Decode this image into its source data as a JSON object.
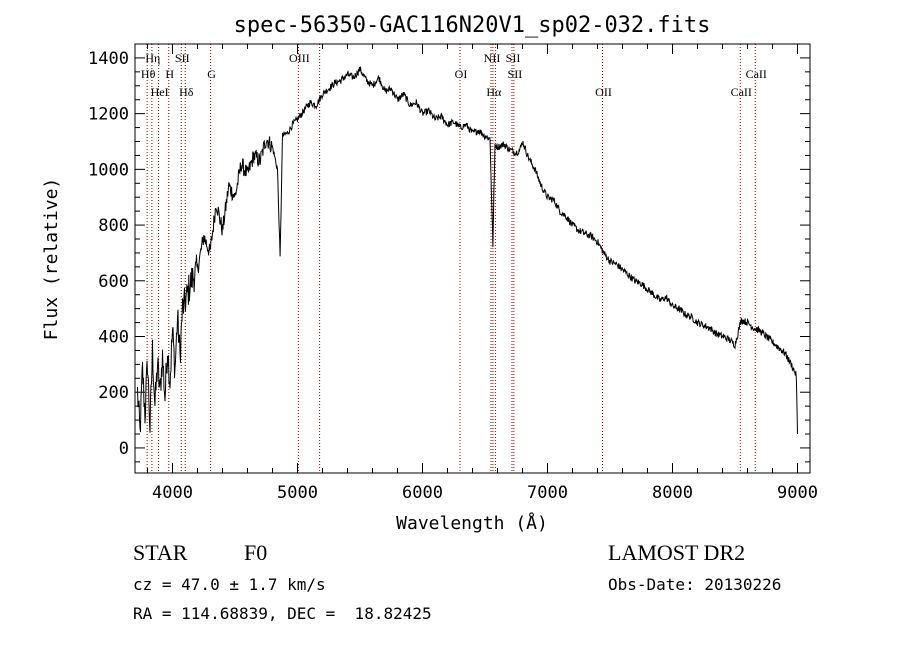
{
  "chart_data": {
    "type": "line",
    "title": "spec-56350-GAC116N20V1_sp02-032.fits",
    "xlabel": "Wavelength (Å)",
    "ylabel": "Flux (relative)",
    "xlim": [
      3700,
      9100
    ],
    "ylim": [
      -90,
      1450
    ],
    "xticks": [
      4000,
      5000,
      6000,
      7000,
      8000,
      9000
    ],
    "yticks": [
      0,
      200,
      400,
      600,
      800,
      1000,
      1200,
      1400
    ],
    "grid": false,
    "line_color": "#000000",
    "marker_color": "#8b0000",
    "series": [
      {
        "x": [
          3720,
          3740,
          3760,
          3780,
          3800,
          3820,
          3840,
          3860,
          3880,
          3900,
          3920,
          3940,
          3960,
          3980,
          4000,
          4020,
          4040,
          4060,
          4080,
          4100,
          4150,
          4200,
          4250,
          4300,
          4350,
          4400,
          4450,
          4500,
          4550,
          4600,
          4650,
          4700,
          4750,
          4800,
          4840,
          4861,
          4880,
          4920,
          4960,
          5000,
          5050,
          5100,
          5150,
          5200,
          5250,
          5300,
          5350,
          5400,
          5450,
          5500,
          5550,
          5600,
          5650,
          5700,
          5750,
          5800,
          5850,
          5900,
          5950,
          6000,
          6050,
          6100,
          6150,
          6200,
          6250,
          6300,
          6350,
          6400,
          6450,
          6500,
          6540,
          6563,
          6580,
          6600,
          6650,
          6700,
          6750,
          6780,
          6800,
          6850,
          6900,
          6950,
          7000,
          7050,
          7100,
          7150,
          7200,
          7250,
          7300,
          7350,
          7400,
          7450,
          7500,
          7550,
          7600,
          7650,
          7700,
          7750,
          7800,
          7850,
          7900,
          7950,
          8000,
          8050,
          8100,
          8150,
          8200,
          8250,
          8300,
          8350,
          8400,
          8450,
          8500,
          8550,
          8600,
          8650,
          8700,
          8750,
          8800,
          8850,
          8900,
          8950,
          8990,
          9000
        ],
        "y": [
          200,
          50,
          280,
          120,
          310,
          70,
          350,
          150,
          300,
          200,
          330,
          180,
          360,
          240,
          420,
          280,
          470,
          330,
          500,
          520,
          600,
          640,
          760,
          700,
          880,
          780,
          940,
          900,
          1020,
          980,
          1050,
          1030,
          1110,
          1080,
          1000,
          680,
          1120,
          1130,
          1160,
          1180,
          1210,
          1240,
          1230,
          1270,
          1290,
          1310,
          1320,
          1340,
          1330,
          1360,
          1320,
          1300,
          1330,
          1280,
          1290,
          1250,
          1270,
          1230,
          1240,
          1200,
          1210,
          1180,
          1190,
          1160,
          1170,
          1150,
          1160,
          1130,
          1140,
          1120,
          1110,
          730,
          1090,
          1080,
          1090,
          1070,
          1060,
          1070,
          1100,
          1040,
          1000,
          940,
          900,
          890,
          850,
          830,
          800,
          780,
          770,
          760,
          740,
          700,
          670,
          660,
          640,
          620,
          600,
          590,
          570,
          550,
          530,
          540,
          510,
          500,
          480,
          470,
          450,
          440,
          430,
          410,
          400,
          390,
          370,
          460,
          450,
          430,
          420,
          400,
          380,
          360,
          340,
          300,
          260,
          50
        ]
      }
    ],
    "line_markers": [
      {
        "wl": 3835,
        "label": "Hη",
        "row": 1
      },
      {
        "wl": 3797,
        "label": "Hθ",
        "row": 2
      },
      {
        "wl": 3889,
        "label": "HeI",
        "row": 3
      },
      {
        "wl": 3970,
        "label": "H",
        "row": 2
      },
      {
        "wl": 4070,
        "label": "SII",
        "row": 1
      },
      {
        "wl": 4102,
        "label": "Hδ",
        "row": 3
      },
      {
        "wl": 4305,
        "label": "G",
        "row": 2
      },
      {
        "wl": 5007,
        "label": "OIII",
        "row": 1
      },
      {
        "wl": 5177,
        "label": "",
        "row": 1
      },
      {
        "wl": 6300,
        "label": "OI",
        "row": 2
      },
      {
        "wl": 6548,
        "label": "NII",
        "row": 1
      },
      {
        "wl": 6563,
        "label": "Hα",
        "row": 3
      },
      {
        "wl": 6583,
        "label": "",
        "row": 1
      },
      {
        "wl": 6716,
        "label": "SII",
        "row": 1
      },
      {
        "wl": 6731,
        "label": "SII",
        "row": 2
      },
      {
        "wl": 7440,
        "label": "OII",
        "row": 3
      },
      {
        "wl": 8542,
        "label": "CaII",
        "row": 3
      },
      {
        "wl": 8662,
        "label": "CaII",
        "row": 2
      }
    ]
  },
  "info": {
    "class": "STAR",
    "subclass": "F0",
    "survey": "LAMOST DR2",
    "cz": "cz = 47.0 ± 1.7 km/s",
    "obs_date": "Obs-Date: 20130226",
    "coords": "RA = 114.68839, DEC =  18.82425"
  }
}
